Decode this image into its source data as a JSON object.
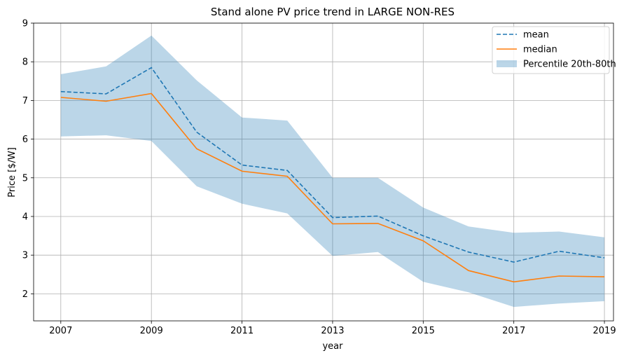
{
  "chart_data": {
    "type": "line",
    "title": "Stand alone PV price trend in LARGE NON-RES",
    "xlabel": "year",
    "ylabel": "Price [$/W]",
    "x": [
      2007,
      2008,
      2009,
      2010,
      2011,
      2012,
      2013,
      2014,
      2015,
      2016,
      2017,
      2018,
      2019
    ],
    "xticks": [
      "2007",
      "2009",
      "2011",
      "2013",
      "2015",
      "2017",
      "2019"
    ],
    "yticks": [
      "2",
      "3",
      "4",
      "5",
      "6",
      "7",
      "8",
      "9"
    ],
    "xlim": [
      2006.4,
      2019.2
    ],
    "ylim": [
      1.3,
      9.0
    ],
    "grid": true,
    "legend_position": "top-right",
    "series": [
      {
        "name": "mean",
        "style": "dashed",
        "color": "#1f77b4",
        "values": [
          7.23,
          7.17,
          7.85,
          6.18,
          5.33,
          5.19,
          3.97,
          4.01,
          3.5,
          3.08,
          2.82,
          3.1,
          2.93
        ]
      },
      {
        "name": "median",
        "style": "solid",
        "color": "#ff7f0e",
        "values": [
          7.08,
          6.98,
          7.18,
          5.75,
          5.17,
          5.04,
          3.81,
          3.82,
          3.37,
          2.6,
          2.31,
          2.46,
          2.44
        ]
      }
    ],
    "band": {
      "name": "Percentile 20th-80th",
      "color": "#1f77b4",
      "lower": [
        6.07,
        6.1,
        5.95,
        4.78,
        4.33,
        4.08,
        2.98,
        3.08,
        2.31,
        2.04,
        1.66,
        1.75,
        1.81
      ],
      "upper": [
        7.68,
        7.88,
        8.68,
        7.52,
        6.56,
        6.48,
        5.0,
        5.0,
        4.23,
        3.74,
        3.58,
        3.61,
        3.46
      ]
    }
  }
}
